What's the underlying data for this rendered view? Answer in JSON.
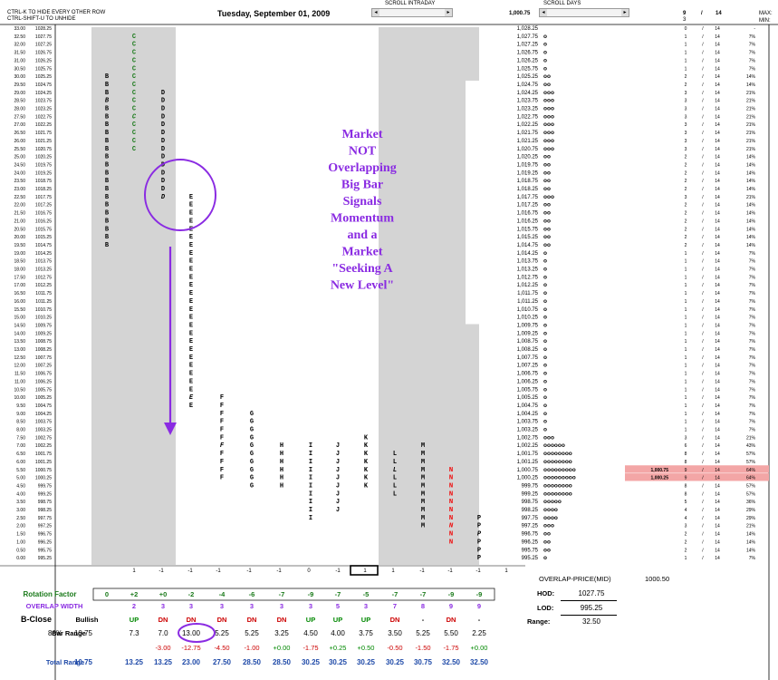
{
  "header": {
    "note_line1": "CTRL-K TO HIDE EVERY OTHER ROW",
    "note_line2": "CTRL-SHIFT-U TO UNHIDE",
    "date": "Tuesday, September 01, 2009",
    "scroll_intraday": "SCROLL INTRADAY",
    "scroll_days": "SCROLL DAYS",
    "current_price": "1,000.75",
    "right_header": {
      "c1": "9",
      "c1b": "3",
      "c2": "/",
      "c3": "14",
      "max": "MAX:",
      "min": "MIN:"
    }
  },
  "colors": {
    "shade": "#d4d4d4",
    "green_letter": "#1a7a1a",
    "red_letter": "#ee1111",
    "annotation": "#8a2be2",
    "highlight": "#f3a6a6",
    "up": "#008800",
    "down": "#cc0000",
    "blue_row": "#1f4aa8"
  },
  "chart_data": {
    "type": "table",
    "title": "Tuesday, September 01, 2009",
    "prices": [
      1028.25,
      1027.75,
      1027.25,
      1026.75,
      1026.25,
      1025.75,
      1025.25,
      1024.75,
      1024.25,
      1023.75,
      1023.25,
      1022.75,
      1022.25,
      1021.75,
      1021.25,
      1020.75,
      1020.25,
      1019.75,
      1019.25,
      1018.75,
      1018.25,
      1017.75,
      1017.25,
      1016.75,
      1016.25,
      1015.75,
      1015.25,
      1014.75,
      1014.25,
      1013.75,
      1013.25,
      1012.75,
      1012.25,
      1011.75,
      1011.25,
      1010.75,
      1010.25,
      1009.75,
      1009.25,
      1008.75,
      1008.25,
      1007.75,
      1007.25,
      1006.75,
      1006.25,
      1005.75,
      1005.25,
      1004.75,
      1004.25,
      1003.75,
      1003.25,
      1002.75,
      1002.25,
      1001.75,
      1001.25,
      1000.75,
      1000.25,
      999.75,
      999.25,
      998.75,
      998.25,
      997.75,
      997.25,
      996.75,
      996.25,
      995.75,
      995.25
    ],
    "row_numbers": [
      "33.00",
      "32.50",
      "32.00",
      "31.50",
      "31.00",
      "30.50",
      "30.00",
      "29.50",
      "29.00",
      "28.50",
      "28.00",
      "27.50",
      "27.00",
      "26.50",
      "26.00",
      "25.50",
      "25.00",
      "24.50",
      "24.00",
      "23.50",
      "23.00",
      "22.50",
      "22.00",
      "21.50",
      "21.00",
      "20.50",
      "20.00",
      "19.50",
      "19.00",
      "18.50",
      "18.00",
      "17.50",
      "17.00",
      "16.50",
      "16.00",
      "15.50",
      "15.00",
      "14.50",
      "14.00",
      "13.50",
      "13.00",
      "12.50",
      "12.00",
      "11.50",
      "11.00",
      "10.50",
      "10.00",
      "9.50",
      "9.00",
      "8.50",
      "8.00",
      "7.50",
      "7.00",
      "6.50",
      "6.00",
      "5.50",
      "5.00",
      "4.50",
      "4.00",
      "3.50",
      "3.00",
      "2.50",
      "2.00",
      "1.50",
      "1.00",
      "0.50",
      "0.00"
    ],
    "price_labels": [
      "1028.25",
      "1027.75",
      "1027.25",
      "1026.75",
      "1026.25",
      "1025.75",
      "1025.25",
      "1024.75",
      "1024.25",
      "1023.75",
      "1023.25",
      "1022.75",
      "1022.25",
      "1021.75",
      "1021.25",
      "1020.75",
      "1020.25",
      "1019.75",
      "1019.25",
      "1018.75",
      "1018.25",
      "1017.75",
      "1017.25",
      "1016.75",
      "1016.25",
      "1015.75",
      "1015.25",
      "1014.75",
      "1014.25",
      "1013.75",
      "1013.25",
      "1012.75",
      "1012.25",
      "1011.75",
      "1011.25",
      "1010.75",
      "1010.25",
      "1009.75",
      "1009.25",
      "1008.75",
      "1008.25",
      "1007.75",
      "1007.25",
      "1006.75",
      "1006.25",
      "1005.75",
      "1005.25",
      "1004.75",
      "1004.25",
      "1003.75",
      "1003.25",
      "1002.75",
      "1002.25",
      "1001.75",
      "1001.25",
      "1000.75",
      "1000.25",
      "999.75",
      "999.25",
      "998.75",
      "998.25",
      "997.75",
      "997.25",
      "996.75",
      "996.25",
      "995.75",
      "995.25"
    ],
    "right_price_labels": [
      "1,028.25",
      "1,027.75",
      "1,027.25",
      "1,026.75",
      "1,026.25",
      "1,025.75",
      "1,025.25",
      "1,024.75",
      "1,024.25",
      "1,023.75",
      "1,023.25",
      "1,022.75",
      "1,022.25",
      "1,021.75",
      "1,021.25",
      "1,020.75",
      "1,020.25",
      "1,019.75",
      "1,019.25",
      "1,018.75",
      "1,018.25",
      "1,017.75",
      "1,017.25",
      "1,016.75",
      "1,016.25",
      "1,015.75",
      "1,015.25",
      "1,014.75",
      "1,014.25",
      "1,013.75",
      "1,013.25",
      "1,012.75",
      "1,012.25",
      "1,011.75",
      "1,011.25",
      "1,010.75",
      "1,010.25",
      "1,009.75",
      "1,009.25",
      "1,008.75",
      "1,008.25",
      "1,007.75",
      "1,007.25",
      "1,006.75",
      "1,006.25",
      "1,005.75",
      "1,005.25",
      "1,004.75",
      "1,004.25",
      "1,003.75",
      "1,003.25",
      "1,002.75",
      "1,002.25",
      "1,001.75",
      "1,001.25",
      "1,000.75",
      "1,000.25",
      "999.75",
      "999.25",
      "998.75",
      "998.25",
      "997.75",
      "997.25",
      "996.75",
      "996.25",
      "995.75",
      "995.25"
    ],
    "tpo_counts": [
      0,
      1,
      1,
      1,
      1,
      1,
      2,
      2,
      3,
      3,
      3,
      3,
      3,
      3,
      3,
      3,
      2,
      2,
      2,
      2,
      2,
      3,
      2,
      2,
      2,
      2,
      2,
      2,
      1,
      1,
      1,
      1,
      1,
      1,
      1,
      1,
      1,
      1,
      1,
      1,
      1,
      1,
      1,
      1,
      1,
      1,
      1,
      1,
      1,
      1,
      1,
      3,
      6,
      8,
      8,
      9,
      9,
      8,
      8,
      5,
      4,
      4,
      3,
      2,
      2,
      2,
      1
    ],
    "col_c": [
      "0",
      "1",
      "1",
      "1",
      "1",
      "1",
      "2",
      "2",
      "3",
      "3",
      "3",
      "3",
      "3",
      "3",
      "3",
      "3",
      "2",
      "2",
      "2",
      "2",
      "2",
      "3",
      "2",
      "2",
      "2",
      "2",
      "2",
      "2",
      "1",
      "1",
      "1",
      "1",
      "1",
      "1",
      "1",
      "1",
      "1",
      "1",
      "1",
      "1",
      "1",
      "1",
      "1",
      "1",
      "1",
      "1",
      "1",
      "1",
      "1",
      "1",
      "1",
      "3",
      "6",
      "8",
      "8",
      "9",
      "9",
      "8",
      "8",
      "5",
      "4",
      "4",
      "3",
      "2",
      "2",
      "2",
      "1"
    ],
    "col_e": [
      "-",
      "7%",
      "7%",
      "7%",
      "7%",
      "7%",
      "14%",
      "14%",
      "21%",
      "21%",
      "21%",
      "21%",
      "21%",
      "21%",
      "21%",
      "21%",
      "14%",
      "14%",
      "14%",
      "14%",
      "14%",
      "21%",
      "14%",
      "14%",
      "14%",
      "14%",
      "14%",
      "14%",
      "7%",
      "7%",
      "7%",
      "7%",
      "7%",
      "7%",
      "7%",
      "7%",
      "7%",
      "7%",
      "7%",
      "7%",
      "7%",
      "7%",
      "7%",
      "7%",
      "7%",
      "7%",
      "7%",
      "7%",
      "7%",
      "7%",
      "7%",
      "21%",
      "43%",
      "57%",
      "57%",
      "64%",
      "64%",
      "57%",
      "57%",
      "36%",
      "29%",
      "29%",
      "21%",
      "14%",
      "14%",
      "14%",
      "7%"
    ],
    "highlight_rows": [
      55,
      56
    ],
    "periods": [
      {
        "letter": "B",
        "top": 1025.25,
        "bottom": 1014.75,
        "italic": [
          1023.75
        ],
        "color": "black"
      },
      {
        "letter": "C",
        "top": 1027.75,
        "bottom": 1020.75,
        "italic": [
          1022.75
        ],
        "color": "green"
      },
      {
        "letter": "D",
        "top": 1024.25,
        "bottom": 1017.75,
        "italic": [
          1017.75
        ],
        "color": "black"
      },
      {
        "letter": "E",
        "top": 1017.75,
        "bottom": 1004.75,
        "italic": [
          1005.25
        ],
        "color": "black"
      },
      {
        "letter": "F",
        "top": 1005.25,
        "bottom": 1000.25,
        "italic": [
          1002.25
        ],
        "color": "black"
      },
      {
        "letter": "G",
        "top": 1004.25,
        "bottom": 999.75,
        "italic": [],
        "color": "black"
      },
      {
        "letter": "H",
        "top": 1002.25,
        "bottom": 999.75,
        "italic": [],
        "color": "black"
      },
      {
        "letter": "I",
        "top": 1002.25,
        "bottom": 997.75,
        "italic": [],
        "color": "black"
      },
      {
        "letter": "J",
        "top": 1002.25,
        "bottom": 998.25,
        "italic": [],
        "color": "black"
      },
      {
        "letter": "K",
        "top": 1002.75,
        "bottom": 999.75,
        "italic": [],
        "color": "black"
      },
      {
        "letter": "L",
        "top": 1001.75,
        "bottom": 999.25,
        "italic": [
          1000.75
        ],
        "color": "black"
      },
      {
        "letter": "M",
        "top": 1002.25,
        "bottom": 997.25,
        "italic": [],
        "color": "black"
      },
      {
        "letter": "N",
        "top": 1000.75,
        "bottom": 996.25,
        "italic": [
          997.25
        ],
        "color": "red"
      },
      {
        "letter": "P",
        "top": 997.75,
        "bottom": 995.25,
        "italic": [
          996.75
        ],
        "color": "black"
      }
    ],
    "annotation": [
      "Market",
      "NOT",
      "Overlapping",
      "Big Bar",
      "Signals",
      "Momentum",
      "and a",
      "Market",
      "\"Seeking A",
      "New Level\""
    ],
    "markers": [
      "1",
      "-1",
      "-1",
      "-1",
      "-1",
      "-1",
      "0",
      "-1",
      "1",
      "1",
      "-1",
      "-1",
      "-1",
      "1"
    ],
    "boxed_marker_index": 8,
    "summary": {
      "rotation_factor_label": "Rotation Factor",
      "rotation_factor": [
        "0",
        "+2",
        "+0",
        "-2",
        "-4",
        "-6",
        "-7",
        "-9",
        "-7",
        "-5",
        "-7",
        "-7",
        "-9",
        "-9"
      ],
      "overlap_width_label": "OVERLAP WIDTH",
      "overlap_width": [
        "",
        "2",
        "3",
        "3",
        "3",
        "3",
        "3",
        "3",
        "5",
        "3",
        "7",
        "8",
        "9",
        "9"
      ],
      "b_close_label": "B-Close",
      "b_close": [
        "Bullish",
        "UP",
        "DN",
        "DN",
        "DN",
        "DN",
        "DN",
        "UP",
        "UP",
        "UP",
        "DN",
        "-",
        "DN",
        "-"
      ],
      "bar_range_label": "Bar Range",
      "bar_range": [
        "86%",
        "10.75",
        "7.3",
        "7.0",
        "13.00",
        "5.25",
        "5.25",
        "3.25",
        "4.50",
        "4.00",
        "3.75",
        "3.50",
        "5.25",
        "5.50",
        "2.25"
      ],
      "bar_range_circled_index": 4,
      "change": [
        "",
        "",
        "",
        "-3.00",
        "-12.75",
        "-4.50",
        "-1.00",
        "+0.00",
        "-1.75",
        "+0.25",
        "+0.50",
        "-0.50",
        "-1.50",
        "-1.75",
        "+0.00"
      ],
      "total_range_label": "Total Range",
      "total_range": [
        "10.75",
        "13.25",
        "13.25",
        "23.00",
        "27.50",
        "28.50",
        "28.50",
        "30.25",
        "30.25",
        "30.25",
        "30.25",
        "30.75",
        "32.50",
        "32.50"
      ]
    },
    "stats": {
      "overlap_price_label": "OVERLAP-PRICE(MID)",
      "overlap_price": "1000.50",
      "hod_label": "HOD:",
      "hod": "1027.75",
      "lod_label": "LOD:",
      "lod": "995.25",
      "range_label": "Range:",
      "range": "32.50"
    }
  }
}
